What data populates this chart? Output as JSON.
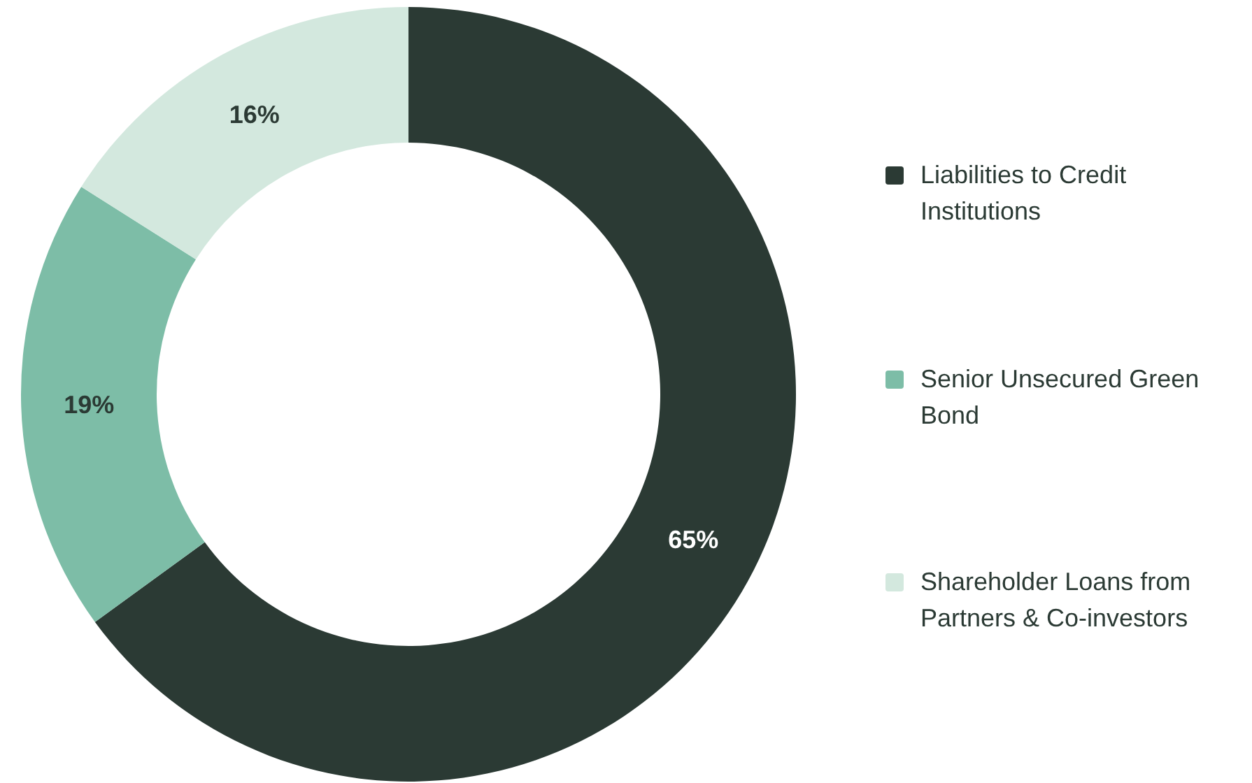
{
  "chart_data": {
    "type": "donut",
    "categories": [
      "Liabilities to Credit Institutions",
      "Senior Unsecured Green Bond",
      "Shareholder Loans from Partners & Co-investors"
    ],
    "values": [
      65,
      19,
      16
    ],
    "colors": [
      "#2b3a34",
      "#7dbda7",
      "#d3e8de"
    ],
    "value_labels": [
      "65%",
      "19%",
      "16%"
    ],
    "legend": "right"
  }
}
